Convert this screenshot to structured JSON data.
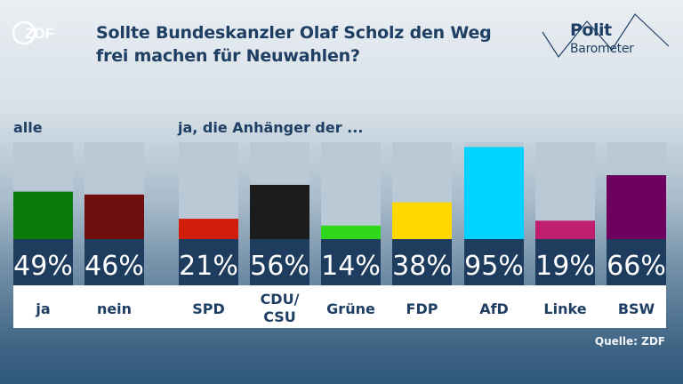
{
  "header": {
    "logo_text": "ZDF",
    "title_line1": "Sollte Bundeskanzler Olaf Scholz den Weg",
    "title_line2": "frei machen für Neuwahlen?",
    "brand_word1": "Polit",
    "brand_word2": "Barometer"
  },
  "group_labels": {
    "all": "alle",
    "supporters": "ja, die Anhänger der ..."
  },
  "source": "Quelle: ZDF",
  "colors": {
    "title": "#1e3f63",
    "bar_background": "#b9c9d6",
    "value_box": "#1e3d5e",
    "label_box": "#ffffff"
  },
  "chart_data": {
    "type": "bar",
    "title": "Sollte Bundeskanzler Olaf Scholz den Weg frei machen für Neuwahlen?",
    "ylim": [
      0,
      100
    ],
    "unit": "%",
    "categories": [
      "ja",
      "nein",
      "SPD",
      "CDU/ CSU",
      "Grüne",
      "FDP",
      "AfD",
      "Linke",
      "BSW"
    ],
    "values": [
      49,
      46,
      21,
      56,
      14,
      38,
      95,
      19,
      66
    ],
    "value_labels": [
      "49%",
      "46%",
      "21%",
      "56%",
      "14%",
      "38%",
      "95%",
      "19%",
      "66%"
    ],
    "bar_colors": [
      "#0a7a0a",
      "#6e0e0e",
      "#d11d0a",
      "#1c1c1c",
      "#2fd81a",
      "#ffd800",
      "#00d2ff",
      "#bf1f6e",
      "#6e005e"
    ],
    "groups": [
      {
        "label": "alle",
        "categories": [
          "ja",
          "nein"
        ]
      },
      {
        "label": "ja, die Anhänger der ...",
        "categories": [
          "SPD",
          "CDU/ CSU",
          "Grüne",
          "FDP",
          "AfD",
          "Linke",
          "BSW"
        ]
      }
    ]
  }
}
